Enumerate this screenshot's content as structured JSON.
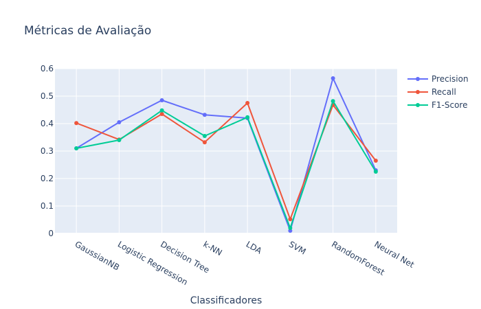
{
  "chart_data": {
    "type": "line",
    "title": "Métricas de Avaliação",
    "xlabel": "Classificadores",
    "ylabel": "",
    "ylim": [
      0,
      0.6
    ],
    "yticks": [
      "0",
      "0.1",
      "0.2",
      "0.3",
      "0.4",
      "0.5",
      "0.6"
    ],
    "grid": true,
    "legend_position": "top-right",
    "categories": [
      "GaussianNB",
      "Logistic Regression",
      "Decision Tree",
      "k-NN",
      "LDA",
      "SVM",
      "RandomForest",
      "Neural Net"
    ],
    "series": [
      {
        "name": "Precision",
        "color": "#636efa",
        "values": [
          0.31,
          0.405,
          0.485,
          0.432,
          0.42,
          0.01,
          0.565,
          0.23
        ]
      },
      {
        "name": "Recall",
        "color": "#ef553b",
        "values": [
          0.402,
          0.342,
          0.435,
          0.332,
          0.475,
          0.052,
          0.468,
          0.265
        ]
      },
      {
        "name": "F1-Score",
        "color": "#00cc96",
        "values": [
          0.31,
          0.34,
          0.448,
          0.355,
          0.423,
          0.02,
          0.482,
          0.225
        ]
      }
    ]
  }
}
